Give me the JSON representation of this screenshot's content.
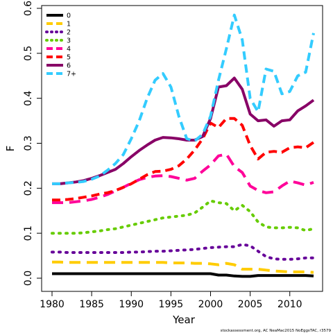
{
  "chart_data": {
    "type": "line",
    "xlabel": "Year",
    "ylabel": "F",
    "xlim": [
      1980,
      2013
    ],
    "ylim": [
      0,
      0.6
    ],
    "xticks": [
      1980,
      1985,
      1990,
      1995,
      2000,
      2005,
      2010
    ],
    "yticks": [
      0.0,
      0.1,
      0.2,
      0.3,
      0.4,
      0.5,
      0.6
    ],
    "ytick_labels": [
      "0.0",
      "0.1",
      "0.2",
      "0.3",
      "0.4",
      "0.5",
      "0.6"
    ],
    "grid": false,
    "legend_position": "top-left",
    "x": [
      1980,
      1981,
      1982,
      1983,
      1984,
      1985,
      1986,
      1987,
      1988,
      1989,
      1990,
      1991,
      1992,
      1993,
      1994,
      1995,
      1996,
      1997,
      1998,
      1999,
      2000,
      2001,
      2002,
      2003,
      2004,
      2005,
      2006,
      2007,
      2008,
      2009,
      2010,
      2011,
      2012,
      2013
    ],
    "series": [
      {
        "name": "0",
        "color": "#000000",
        "dash": "solid",
        "values": [
          0.01,
          0.01,
          0.01,
          0.01,
          0.01,
          0.01,
          0.01,
          0.01,
          0.01,
          0.01,
          0.01,
          0.01,
          0.01,
          0.01,
          0.01,
          0.01,
          0.01,
          0.01,
          0.01,
          0.01,
          0.01,
          0.007,
          0.007,
          0.005,
          0.004,
          0.004,
          0.006,
          0.006,
          0.006,
          0.006,
          0.006,
          0.006,
          0.006,
          0.005
        ]
      },
      {
        "name": "1",
        "color": "#FFCC00",
        "dash": "long",
        "values": [
          0.036,
          0.036,
          0.035,
          0.035,
          0.035,
          0.035,
          0.035,
          0.035,
          0.035,
          0.035,
          0.035,
          0.035,
          0.035,
          0.035,
          0.035,
          0.034,
          0.034,
          0.034,
          0.033,
          0.033,
          0.032,
          0.03,
          0.033,
          0.03,
          0.02,
          0.02,
          0.02,
          0.018,
          0.016,
          0.015,
          0.014,
          0.014,
          0.014,
          0.013
        ]
      },
      {
        "name": "2",
        "color": "#660099",
        "dash": "dot",
        "values": [
          0.058,
          0.058,
          0.057,
          0.057,
          0.057,
          0.057,
          0.057,
          0.057,
          0.057,
          0.057,
          0.058,
          0.058,
          0.059,
          0.06,
          0.06,
          0.061,
          0.062,
          0.063,
          0.064,
          0.066,
          0.068,
          0.069,
          0.07,
          0.07,
          0.075,
          0.072,
          0.06,
          0.048,
          0.043,
          0.042,
          0.042,
          0.043,
          0.045,
          0.045
        ]
      },
      {
        "name": "3",
        "color": "#66CC00",
        "dash": "dot",
        "values": [
          0.1,
          0.1,
          0.1,
          0.1,
          0.101,
          0.103,
          0.105,
          0.108,
          0.11,
          0.114,
          0.118,
          0.122,
          0.126,
          0.13,
          0.134,
          0.136,
          0.138,
          0.14,
          0.145,
          0.158,
          0.172,
          0.168,
          0.166,
          0.15,
          0.162,
          0.148,
          0.125,
          0.114,
          0.112,
          0.112,
          0.113,
          0.112,
          0.106,
          0.11
        ]
      },
      {
        "name": "4",
        "color": "#FF0099",
        "dash": "long",
        "values": [
          0.168,
          0.168,
          0.168,
          0.17,
          0.172,
          0.175,
          0.18,
          0.186,
          0.194,
          0.202,
          0.211,
          0.219,
          0.224,
          0.227,
          0.228,
          0.226,
          0.222,
          0.218,
          0.222,
          0.238,
          0.252,
          0.272,
          0.276,
          0.248,
          0.235,
          0.205,
          0.195,
          0.19,
          0.192,
          0.205,
          0.216,
          0.212,
          0.207,
          0.213
        ]
      },
      {
        "name": "5",
        "color": "#FF0000",
        "dash": "dash",
        "values": [
          0.174,
          0.174,
          0.175,
          0.177,
          0.18,
          0.183,
          0.187,
          0.19,
          0.195,
          0.202,
          0.21,
          0.22,
          0.23,
          0.237,
          0.238,
          0.242,
          0.25,
          0.265,
          0.285,
          0.31,
          0.345,
          0.335,
          0.355,
          0.355,
          0.34,
          0.295,
          0.265,
          0.28,
          0.282,
          0.28,
          0.29,
          0.292,
          0.29,
          0.302
        ]
      },
      {
        "name": "6",
        "color": "#880066",
        "dash": "solid",
        "values": [
          0.21,
          0.21,
          0.212,
          0.214,
          0.217,
          0.222,
          0.228,
          0.235,
          0.242,
          0.255,
          0.27,
          0.284,
          0.296,
          0.307,
          0.313,
          0.312,
          0.31,
          0.307,
          0.307,
          0.315,
          0.355,
          0.425,
          0.428,
          0.445,
          0.42,
          0.365,
          0.35,
          0.352,
          0.338,
          0.35,
          0.352,
          0.372,
          0.383,
          0.396
        ]
      },
      {
        "name": "7+",
        "color": "#33CCFF",
        "dash": "dash",
        "values": [
          0.21,
          0.21,
          0.212,
          0.213,
          0.215,
          0.22,
          0.227,
          0.24,
          0.255,
          0.275,
          0.31,
          0.35,
          0.4,
          0.44,
          0.455,
          0.425,
          0.36,
          0.31,
          0.305,
          0.32,
          0.36,
          0.44,
          0.51,
          0.585,
          0.53,
          0.4,
          0.37,
          0.465,
          0.46,
          0.41,
          0.415,
          0.45,
          0.458,
          0.545
        ]
      }
    ],
    "footnote": "stockassessment.org, AC NeaMac2015 NoEggsTAC, r3579"
  }
}
